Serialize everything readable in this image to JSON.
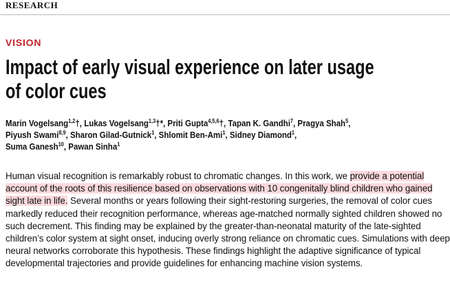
{
  "header": {
    "section": "RESEARCH"
  },
  "article": {
    "category": "VISION",
    "title_lines": [
      "Impact of early visual experience on later usage",
      "of color cues"
    ],
    "author_lines": [
      [
        {
          "name": "Marin Vogelsang",
          "sup": "1,2",
          "after": "†, "
        },
        {
          "name": "Lukas Vogelsang",
          "sup": "1,3",
          "after": "†*, "
        },
        {
          "name": "Priti Gupta",
          "sup": "4,5,6",
          "after": "†, "
        },
        {
          "name": "Tapan K. Gandhi",
          "sup": "7",
          "after": ", "
        },
        {
          "name": "Pragya Shah",
          "sup": "5",
          "after": ","
        }
      ],
      [
        {
          "name": "Piyush Swami",
          "sup": "8,9",
          "after": ", "
        },
        {
          "name": "Sharon Gilad-Gutnick",
          "sup": "1",
          "after": ", "
        },
        {
          "name": "Shlomit Ben-Ami",
          "sup": "1",
          "after": ", "
        },
        {
          "name": "Sidney Diamond",
          "sup": "1",
          "after": ","
        }
      ],
      [
        {
          "name": "Suma Ganesh",
          "sup": "10",
          "after": ", "
        },
        {
          "name": "Pawan Sinha",
          "sup": "1",
          "after": ""
        }
      ]
    ],
    "abstract": {
      "before": "Human visual recognition is remarkably robust to chromatic changes. In this work, we ",
      "highlight": "provide a potential account of the roots of this resilience based on observations with 10 congenitally blind children who gained sight late in life.",
      "after": " Several months or years following their sight-restoring surgeries, the removal of color cues markedly reduced their recognition performance, whereas age-matched normally sighted children showed no such decrement. This finding may be explained by the greater-than-neonatal maturity of the late-sighted children’s color system at sight onset, inducing overly strong reliance on chromatic cues. Simulations with deep neural networks corroborate this hypothesis. These findings highlight the adaptive significance of typical developmental trajectories and provide guidelines for enhancing machine vision systems."
    }
  }
}
